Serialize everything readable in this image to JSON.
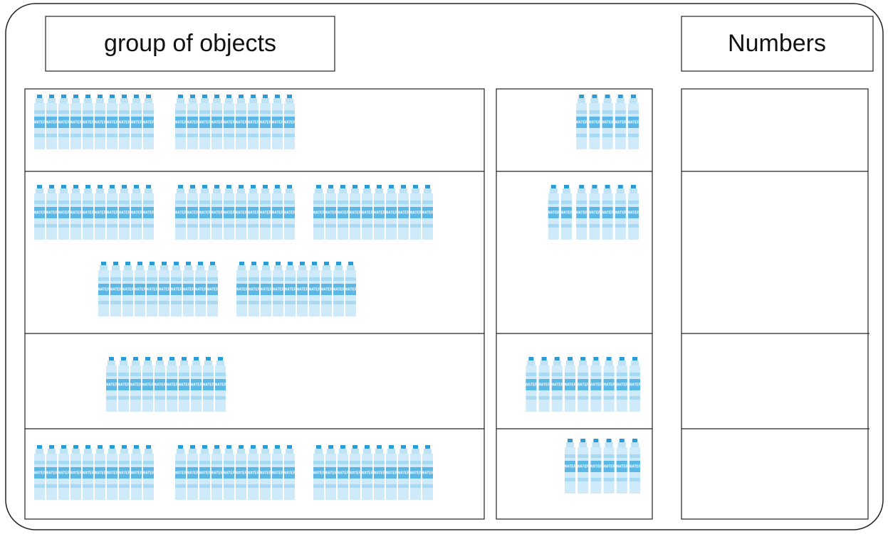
{
  "header": {
    "left": "group of objects",
    "right": "Numbers"
  },
  "bottle_label": "WATER",
  "rows": [
    {
      "tens": 2,
      "ones": 5
    },
    {
      "tens": 5,
      "ones": 7
    },
    {
      "tens": 1,
      "ones": 9
    },
    {
      "tens": 3,
      "ones": 6
    }
  ]
}
